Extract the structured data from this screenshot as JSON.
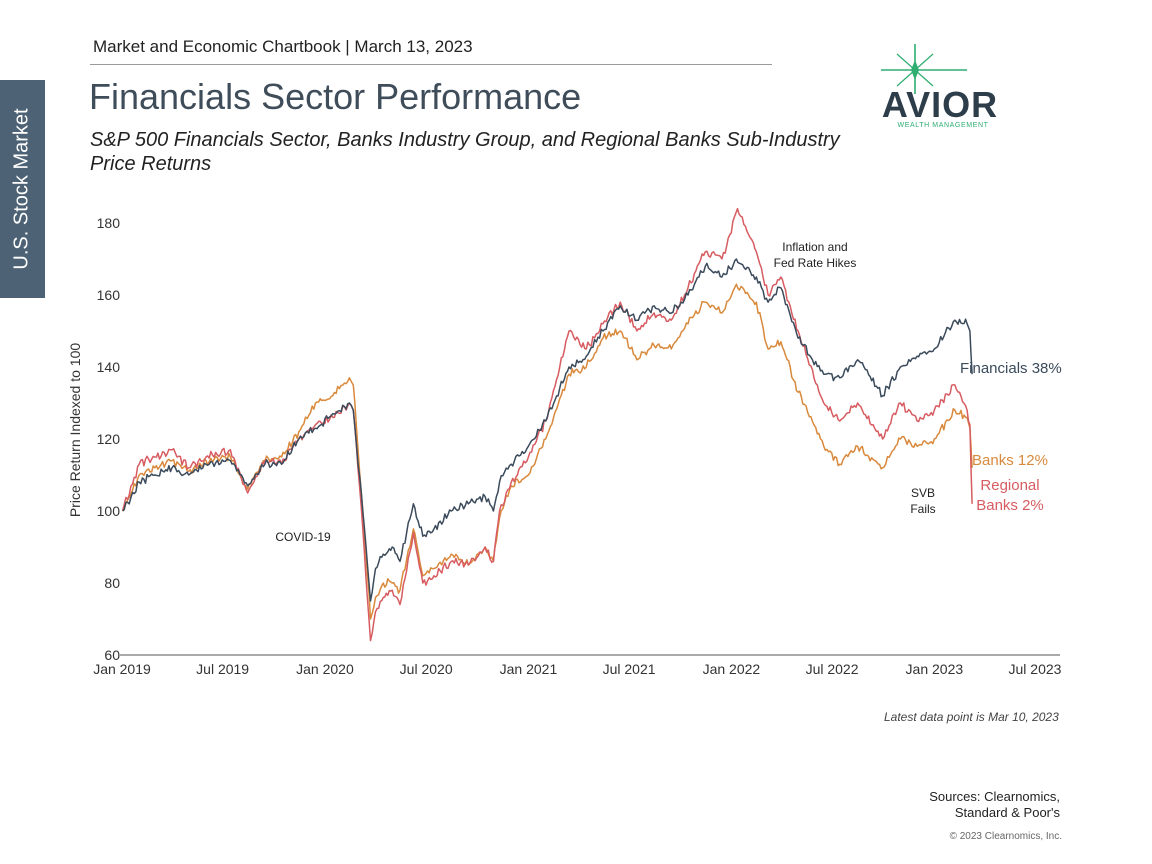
{
  "side_tab": {
    "label": "U.S. Stock Market"
  },
  "header": {
    "chartbook": "Market and Economic Chartbook | March 13, 2023",
    "title": "Financials Sector Performance",
    "subtitle": "S&P 500 Financials Sector, Banks Industry Group, and Regional Banks Sub-Industry Price Returns"
  },
  "logo": {
    "name": "AVIOR",
    "tagline": "WEALTH MANAGEMENT",
    "accent": "#2fae72",
    "color": "#2d3e4a"
  },
  "footer": {
    "latest": "Latest data point is Mar 10, 2023",
    "sources_line1": "Sources: Clearnomics,",
    "sources_line2": "Standard & Poor's",
    "copyright": "© 2023 Clearnomics, Inc."
  },
  "chart_data": {
    "type": "line",
    "ylabel": "Price Return Indexed to 100",
    "ylim": [
      60,
      185
    ],
    "xlim": [
      "2019-01-01",
      "2023-08-15"
    ],
    "yticks": [
      60,
      80,
      100,
      120,
      140,
      160,
      180
    ],
    "xticks": [
      {
        "date": "2019-01-01",
        "label": "Jan 2019"
      },
      {
        "date": "2019-07-01",
        "label": "Jul 2019"
      },
      {
        "date": "2020-01-01",
        "label": "Jan 2020"
      },
      {
        "date": "2020-07-01",
        "label": "Jul 2020"
      },
      {
        "date": "2021-01-01",
        "label": "Jan 2021"
      },
      {
        "date": "2021-07-01",
        "label": "Jul 2021"
      },
      {
        "date": "2022-01-01",
        "label": "Jan 2022"
      },
      {
        "date": "2022-07-01",
        "label": "Jul 2022"
      },
      {
        "date": "2023-01-01",
        "label": "Jan 2023"
      },
      {
        "date": "2023-07-01",
        "label": "Jul 2023"
      }
    ],
    "annotations": [
      {
        "id": "covid",
        "lines": [
          "COVID-19"
        ]
      },
      {
        "id": "hikes",
        "lines": [
          "Inflation and",
          "Fed Rate Hikes"
        ]
      },
      {
        "id": "svb",
        "lines": [
          "SVB",
          "Fails"
        ]
      }
    ],
    "series": [
      {
        "name": "Financials 38%",
        "end_label": [
          "Financials 38%"
        ],
        "color": "#3b4b5c",
        "points": [
          [
            "2019-01-02",
            100
          ],
          [
            "2019-02-01",
            108
          ],
          [
            "2019-03-01",
            110
          ],
          [
            "2019-04-01",
            112
          ],
          [
            "2019-05-01",
            110
          ],
          [
            "2019-06-01",
            113
          ],
          [
            "2019-07-15",
            114
          ],
          [
            "2019-08-15",
            107
          ],
          [
            "2019-09-15",
            113
          ],
          [
            "2019-10-15",
            113
          ],
          [
            "2019-11-15",
            120
          ],
          [
            "2019-12-15",
            123
          ],
          [
            "2020-01-15",
            127
          ],
          [
            "2020-02-14",
            130
          ],
          [
            "2020-02-21",
            128
          ],
          [
            "2020-03-09",
            100
          ],
          [
            "2020-03-23",
            75
          ],
          [
            "2020-04-01",
            84
          ],
          [
            "2020-04-15",
            88
          ],
          [
            "2020-05-01",
            90
          ],
          [
            "2020-05-15",
            86
          ],
          [
            "2020-06-08",
            102
          ],
          [
            "2020-06-25",
            93
          ],
          [
            "2020-07-15",
            95
          ],
          [
            "2020-08-15",
            100
          ],
          [
            "2020-09-15",
            102
          ],
          [
            "2020-10-15",
            104
          ],
          [
            "2020-10-30",
            100
          ],
          [
            "2020-11-10",
            108
          ],
          [
            "2020-12-01",
            113
          ],
          [
            "2021-01-01",
            118
          ],
          [
            "2021-02-01",
            125
          ],
          [
            "2021-03-15",
            140
          ],
          [
            "2021-04-15",
            143
          ],
          [
            "2021-05-15",
            150
          ],
          [
            "2021-06-15",
            157
          ],
          [
            "2021-07-15",
            153
          ],
          [
            "2021-08-15",
            157
          ],
          [
            "2021-09-15",
            155
          ],
          [
            "2021-10-15",
            160
          ],
          [
            "2021-11-15",
            168
          ],
          [
            "2021-12-15",
            165
          ],
          [
            "2022-01-10",
            170
          ],
          [
            "2022-02-15",
            165
          ],
          [
            "2022-03-08",
            158
          ],
          [
            "2022-03-31",
            162
          ],
          [
            "2022-05-01",
            148
          ],
          [
            "2022-06-16",
            138
          ],
          [
            "2022-07-15",
            137
          ],
          [
            "2022-08-16",
            142
          ],
          [
            "2022-09-30",
            132
          ],
          [
            "2022-11-01",
            140
          ],
          [
            "2022-12-01",
            143
          ],
          [
            "2023-01-01",
            145
          ],
          [
            "2023-02-07",
            153
          ],
          [
            "2023-03-01",
            152
          ],
          [
            "2023-03-06",
            150
          ],
          [
            "2023-03-10",
            138
          ]
        ]
      },
      {
        "name": "Banks 12%",
        "end_label": [
          "Banks 12%"
        ],
        "color": "#d9893c",
        "points": [
          [
            "2019-01-02",
            100
          ],
          [
            "2019-02-01",
            110
          ],
          [
            "2019-03-01",
            112
          ],
          [
            "2019-04-01",
            114
          ],
          [
            "2019-05-01",
            111
          ],
          [
            "2019-06-01",
            114
          ],
          [
            "2019-07-15",
            115
          ],
          [
            "2019-08-15",
            106
          ],
          [
            "2019-09-15",
            114
          ],
          [
            "2019-10-15",
            115
          ],
          [
            "2019-11-15",
            122
          ],
          [
            "2019-12-15",
            130
          ],
          [
            "2020-01-15",
            132
          ],
          [
            "2020-02-14",
            137
          ],
          [
            "2020-02-21",
            135
          ],
          [
            "2020-03-09",
            100
          ],
          [
            "2020-03-23",
            70
          ],
          [
            "2020-04-01",
            76
          ],
          [
            "2020-04-15",
            80
          ],
          [
            "2020-05-01",
            80
          ],
          [
            "2020-05-15",
            78
          ],
          [
            "2020-06-08",
            95
          ],
          [
            "2020-06-25",
            82
          ],
          [
            "2020-07-15",
            84
          ],
          [
            "2020-08-15",
            88
          ],
          [
            "2020-09-15",
            85
          ],
          [
            "2020-10-15",
            90
          ],
          [
            "2020-10-30",
            86
          ],
          [
            "2020-11-10",
            98
          ],
          [
            "2020-12-01",
            107
          ],
          [
            "2021-01-01",
            110
          ],
          [
            "2021-02-01",
            120
          ],
          [
            "2021-03-15",
            138
          ],
          [
            "2021-04-15",
            140
          ],
          [
            "2021-05-15",
            148
          ],
          [
            "2021-06-15",
            150
          ],
          [
            "2021-07-15",
            142
          ],
          [
            "2021-08-15",
            146
          ],
          [
            "2021-09-15",
            145
          ],
          [
            "2021-10-15",
            152
          ],
          [
            "2021-11-15",
            158
          ],
          [
            "2021-12-15",
            155
          ],
          [
            "2022-01-10",
            163
          ],
          [
            "2022-02-15",
            158
          ],
          [
            "2022-03-08",
            145
          ],
          [
            "2022-03-31",
            147
          ],
          [
            "2022-05-01",
            133
          ],
          [
            "2022-06-16",
            118
          ],
          [
            "2022-07-15",
            113
          ],
          [
            "2022-08-16",
            118
          ],
          [
            "2022-09-30",
            112
          ],
          [
            "2022-11-01",
            120
          ],
          [
            "2022-12-01",
            118
          ],
          [
            "2023-01-01",
            120
          ],
          [
            "2023-02-07",
            128
          ],
          [
            "2023-03-01",
            126
          ],
          [
            "2023-03-06",
            123
          ],
          [
            "2023-03-10",
            112
          ]
        ]
      },
      {
        "name": "Regional Banks 2%",
        "end_label": [
          "Regional",
          "Banks 2%"
        ],
        "color": "#d75c61",
        "points": [
          [
            "2019-01-02",
            100
          ],
          [
            "2019-02-01",
            113
          ],
          [
            "2019-03-01",
            115
          ],
          [
            "2019-04-01",
            117
          ],
          [
            "2019-05-01",
            112
          ],
          [
            "2019-06-01",
            115
          ],
          [
            "2019-07-15",
            117
          ],
          [
            "2019-08-15",
            105
          ],
          [
            "2019-09-15",
            114
          ],
          [
            "2019-10-15",
            113
          ],
          [
            "2019-11-15",
            120
          ],
          [
            "2019-12-15",
            124
          ],
          [
            "2020-01-15",
            126
          ],
          [
            "2020-02-14",
            130
          ],
          [
            "2020-02-21",
            128
          ],
          [
            "2020-03-09",
            95
          ],
          [
            "2020-03-23",
            64
          ],
          [
            "2020-04-01",
            72
          ],
          [
            "2020-04-15",
            76
          ],
          [
            "2020-05-01",
            78
          ],
          [
            "2020-05-15",
            74
          ],
          [
            "2020-06-08",
            94
          ],
          [
            "2020-06-25",
            80
          ],
          [
            "2020-07-15",
            82
          ],
          [
            "2020-08-15",
            86
          ],
          [
            "2020-09-15",
            85
          ],
          [
            "2020-10-15",
            90
          ],
          [
            "2020-10-30",
            86
          ],
          [
            "2020-11-10",
            100
          ],
          [
            "2020-12-01",
            108
          ],
          [
            "2021-01-01",
            115
          ],
          [
            "2021-02-01",
            125
          ],
          [
            "2021-03-15",
            150
          ],
          [
            "2021-04-15",
            145
          ],
          [
            "2021-05-15",
            152
          ],
          [
            "2021-06-15",
            158
          ],
          [
            "2021-07-15",
            150
          ],
          [
            "2021-08-15",
            155
          ],
          [
            "2021-09-15",
            153
          ],
          [
            "2021-10-15",
            162
          ],
          [
            "2021-11-15",
            172
          ],
          [
            "2021-12-15",
            170
          ],
          [
            "2022-01-12",
            184
          ],
          [
            "2022-02-15",
            172
          ],
          [
            "2022-03-08",
            160
          ],
          [
            "2022-03-31",
            165
          ],
          [
            "2022-05-01",
            150
          ],
          [
            "2022-06-16",
            130
          ],
          [
            "2022-07-15",
            125
          ],
          [
            "2022-08-16",
            130
          ],
          [
            "2022-09-30",
            120
          ],
          [
            "2022-11-01",
            130
          ],
          [
            "2022-12-01",
            125
          ],
          [
            "2023-01-01",
            128
          ],
          [
            "2023-02-07",
            135
          ],
          [
            "2023-03-01",
            128
          ],
          [
            "2023-03-06",
            124
          ],
          [
            "2023-03-10",
            102
          ]
        ]
      }
    ]
  }
}
